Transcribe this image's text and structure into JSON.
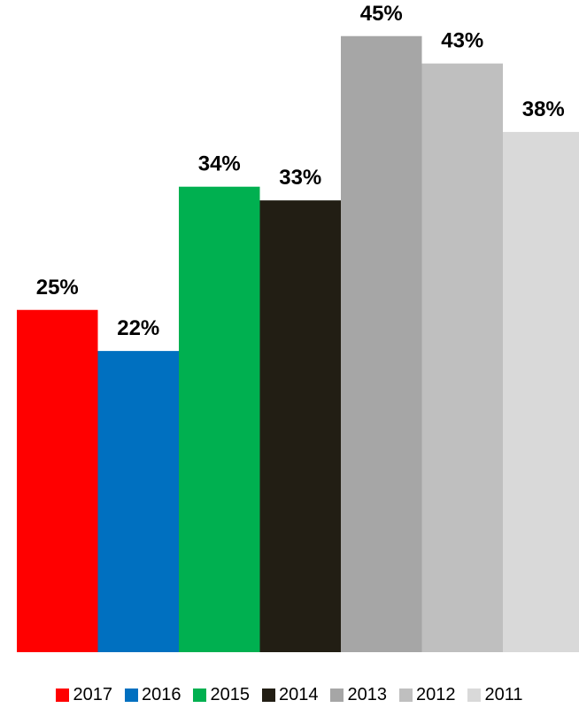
{
  "chart_data": {
    "type": "bar",
    "title": "",
    "xlabel": "",
    "ylabel": "",
    "ylim": [
      0,
      50
    ],
    "grid": false,
    "legend_position": "bottom",
    "categories": [
      ""
    ],
    "series": [
      {
        "name": "2017",
        "values": [
          25
        ],
        "label": "25%",
        "color": "#ff0000"
      },
      {
        "name": "2016",
        "values": [
          22
        ],
        "label": "22%",
        "color": "#0070c0"
      },
      {
        "name": "2015",
        "values": [
          34
        ],
        "label": "34%",
        "color": "#00b050"
      },
      {
        "name": "2014",
        "values": [
          33
        ],
        "label": "33%",
        "color": "#221e14"
      },
      {
        "name": "2013",
        "values": [
          45
        ],
        "label": "45%",
        "color": "#a6a6a6"
      },
      {
        "name": "2012",
        "values": [
          43
        ],
        "label": "43%",
        "color": "#bfbfbf"
      },
      {
        "name": "2011",
        "values": [
          38
        ],
        "label": "38%",
        "color": "#d9d9d9"
      }
    ]
  }
}
